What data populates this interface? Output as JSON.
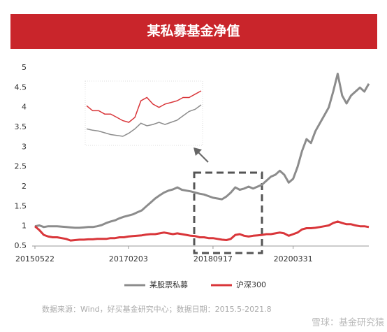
{
  "chart_data": {
    "type": "line",
    "title": "某私募基金净值",
    "x": [
      "2015-05",
      "2015-06",
      "2015-07",
      "2015-08",
      "2015-09",
      "2015-10",
      "2015-11",
      "2015-12",
      "2016-01",
      "2016-02",
      "2016-03",
      "2016-04",
      "2016-05",
      "2016-06",
      "2016-07",
      "2016-08",
      "2016-09",
      "2016-10",
      "2016-11",
      "2016-12",
      "2017-01",
      "2017-02",
      "2017-03",
      "2017-04",
      "2017-05",
      "2017-06",
      "2017-07",
      "2017-08",
      "2017-09",
      "2017-10",
      "2017-11",
      "2017-12",
      "2018-01",
      "2018-02",
      "2018-03",
      "2018-04",
      "2018-05",
      "2018-06",
      "2018-07",
      "2018-08",
      "2018-09",
      "2018-10",
      "2018-11",
      "2018-12",
      "2019-01",
      "2019-02",
      "2019-03",
      "2019-04",
      "2019-05",
      "2019-06",
      "2019-07",
      "2019-08",
      "2019-09",
      "2019-10",
      "2019-11",
      "2019-12",
      "2020-01",
      "2020-02",
      "2020-03",
      "2020-04",
      "2020-05",
      "2020-06",
      "2020-07",
      "2020-08",
      "2020-09",
      "2020-10",
      "2020-11",
      "2020-12",
      "2021-01",
      "2021-02",
      "2021-03",
      "2021-04",
      "2021-05",
      "2021-06",
      "2021-07",
      "2021-08"
    ],
    "series": [
      {
        "name": "某股票私募",
        "color": "#8c8c8c",
        "values": [
          1.0,
          1.02,
          0.98,
          1.0,
          1.0,
          1.0,
          0.99,
          0.98,
          0.97,
          0.96,
          0.96,
          0.97,
          0.98,
          0.98,
          1.0,
          1.03,
          1.08,
          1.12,
          1.15,
          1.2,
          1.24,
          1.27,
          1.3,
          1.35,
          1.4,
          1.5,
          1.6,
          1.7,
          1.78,
          1.85,
          1.9,
          1.93,
          1.98,
          1.92,
          1.9,
          1.88,
          1.85,
          1.82,
          1.8,
          1.76,
          1.72,
          1.7,
          1.68,
          1.75,
          1.85,
          1.98,
          1.92,
          1.95,
          2.0,
          1.95,
          2.0,
          2.05,
          2.15,
          2.25,
          2.3,
          2.4,
          2.3,
          2.1,
          2.2,
          2.5,
          2.9,
          3.2,
          3.1,
          3.4,
          3.6,
          3.8,
          4.0,
          4.4,
          4.85,
          4.3,
          4.1,
          4.3,
          4.4,
          4.5,
          4.4,
          4.6
        ]
      },
      {
        "name": "沪深300",
        "color": "#d9363a",
        "values": [
          1.0,
          0.9,
          0.78,
          0.74,
          0.72,
          0.72,
          0.7,
          0.68,
          0.64,
          0.65,
          0.66,
          0.66,
          0.67,
          0.67,
          0.68,
          0.68,
          0.68,
          0.7,
          0.7,
          0.72,
          0.72,
          0.74,
          0.75,
          0.76,
          0.77,
          0.79,
          0.8,
          0.8,
          0.82,
          0.84,
          0.82,
          0.8,
          0.82,
          0.8,
          0.78,
          0.76,
          0.75,
          0.72,
          0.72,
          0.7,
          0.7,
          0.68,
          0.66,
          0.65,
          0.68,
          0.78,
          0.8,
          0.76,
          0.74,
          0.76,
          0.77,
          0.78,
          0.8,
          0.8,
          0.82,
          0.84,
          0.82,
          0.76,
          0.8,
          0.84,
          0.92,
          0.95,
          0.95,
          0.96,
          0.98,
          1.0,
          1.02,
          1.08,
          1.12,
          1.08,
          1.05,
          1.05,
          1.02,
          1.0,
          1.0,
          0.98
        ]
      }
    ],
    "ylim": [
      0.5,
      5
    ],
    "yticks": [
      0.5,
      1,
      1.5,
      2,
      2.5,
      3,
      3.5,
      4,
      4.5,
      5
    ],
    "xticks": [
      {
        "value": "2015-05",
        "label": "20150522"
      },
      {
        "value": "2017-02",
        "label": "20170203"
      },
      {
        "value": "2018-09",
        "label": "20180917"
      },
      {
        "value": "2020-03",
        "label": "20200331"
      }
    ],
    "legend": "bottom",
    "source": "数据来源：Wind，好买基金研究中心；数据日期：2015.5-2021.8",
    "watermark": "雪球：基金研究猿"
  }
}
